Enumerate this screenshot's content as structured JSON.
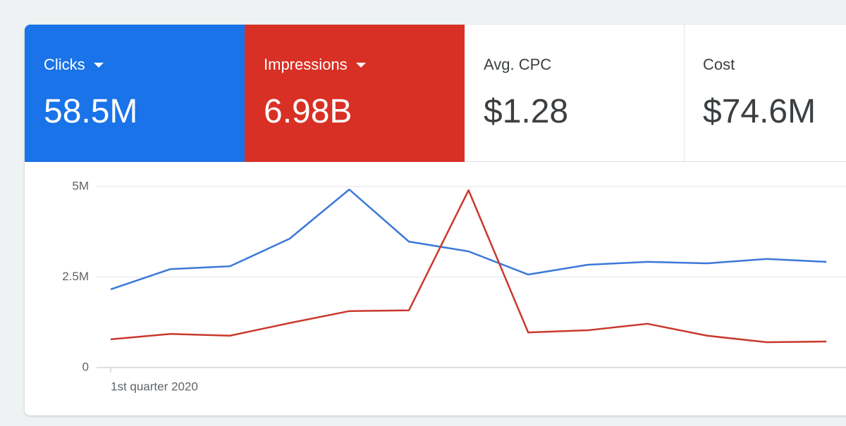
{
  "metrics": [
    {
      "label": "Clicks",
      "value": "58.5M"
    },
    {
      "label": "Impressions",
      "value": "6.98B"
    },
    {
      "label": "Avg. CPC",
      "value": "$1.28"
    },
    {
      "label": "Cost",
      "value": "$74.6M"
    }
  ],
  "chart_data": {
    "type": "line",
    "categories": [
      "1st quarter 2020",
      null,
      null,
      null,
      null,
      null,
      null,
      null,
      null,
      null,
      null,
      null,
      null
    ],
    "series": [
      {
        "name": "Clicks",
        "color": "#3b78d8",
        "values": [
          2.16,
          2.72,
          2.8,
          3.56,
          4.92,
          3.48,
          3.21,
          2.57,
          2.84,
          2.92,
          2.88,
          3.0,
          2.92
        ]
      },
      {
        "name": "Impressions",
        "color": "#c9392c",
        "values": [
          0.78,
          0.93,
          0.88,
          1.23,
          1.56,
          1.58,
          4.9,
          0.97,
          1.03,
          1.21,
          0.88,
          0.7,
          0.72
        ]
      }
    ],
    "ylim": [
      0,
      5
    ],
    "yticks": [
      0,
      {
        "value": 2.5,
        "label": "2.5M"
      },
      {
        "value": 5,
        "label": "5M"
      }
    ],
    "grid": true
  }
}
